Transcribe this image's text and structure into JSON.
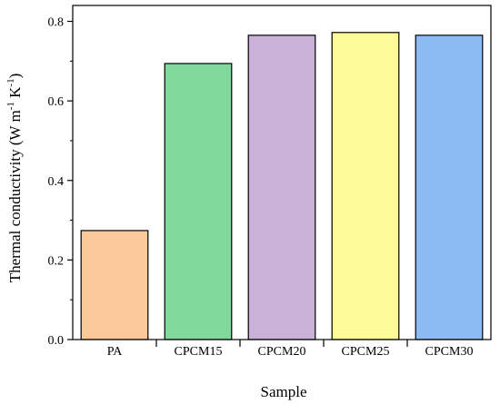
{
  "chart_data": {
    "type": "bar",
    "categories": [
      "PA",
      "CPCM15",
      "CPCM20",
      "CPCM25",
      "CPCM30"
    ],
    "values": [
      0.274,
      0.694,
      0.765,
      0.772,
      0.765
    ],
    "colors": [
      "#FBC89A",
      "#80D89A",
      "#C9B1D8",
      "#FDFB98",
      "#8CBAF2"
    ],
    "xlabel": "Sample",
    "ylabel": {
      "prefix": "Thermal conductivity (W m",
      "sup1": "-1",
      "middle": " K",
      "sup2": "-1",
      "suffix": ")"
    },
    "ylim": [
      0,
      0.84
    ],
    "yticks": [
      "0.0",
      "0.2",
      "0.4",
      "0.6",
      "0.8"
    ],
    "grid": false,
    "legend": "none"
  }
}
